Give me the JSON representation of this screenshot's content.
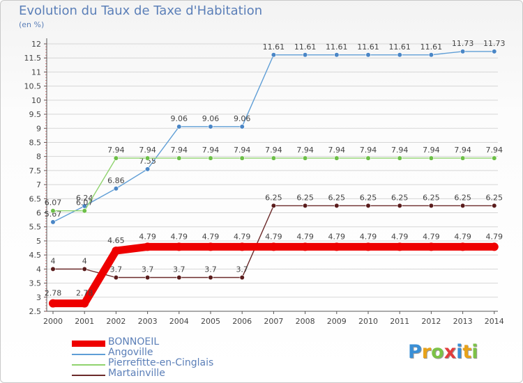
{
  "header": {
    "title": "Evolution du Taux de Taxe d'Habitation",
    "unit": "(en %)"
  },
  "colors": {
    "background": "#ffffff",
    "grid": "#d6d6d6",
    "axis": "#555555",
    "title": "#5b7fb8"
  },
  "logo": {
    "letters": [
      "P",
      "r",
      "o",
      "x",
      "i",
      "t",
      "i"
    ],
    "colors": [
      "#3a8fd6",
      "#e8a219",
      "#7cc247",
      "#e23d3d",
      "#3a8fd6",
      "#e8a219",
      "#7cc247"
    ]
  },
  "chart_data": {
    "type": "line",
    "title": "Evolution du Taux de Taxe d'Habitation",
    "ylabel": "(en %)",
    "x": [
      "2000",
      "2001",
      "2002",
      "2003",
      "2004",
      "2005",
      "2006",
      "2007",
      "2008",
      "2009",
      "2010",
      "2011",
      "2012",
      "2013",
      "2014"
    ],
    "ylim": [
      2.5,
      12
    ],
    "yticks": [
      "2.5",
      "3",
      "3.5",
      "4",
      "4.5",
      "5",
      "5.5",
      "6",
      "6.5",
      "7",
      "7.5",
      "8",
      "8.5",
      "9",
      "9.5",
      "10",
      "10.5",
      "11",
      "11.5",
      "12"
    ],
    "grid": "horizontal",
    "legend_position": "bottom-left",
    "series": [
      {
        "name": "Angoville",
        "color": "#5f9ed6",
        "marker": "#4a86c6",
        "values": [
          5.67,
          6.24,
          6.86,
          7.55,
          9.06,
          9.06,
          9.06,
          11.61,
          11.61,
          11.61,
          11.61,
          11.61,
          11.61,
          11.73,
          11.73
        ],
        "labels": [
          "5.67",
          "6.24",
          "6.86",
          "7.55",
          "9.06",
          "9.06",
          "9.06",
          "11.61",
          "11.61",
          "11.61",
          "11.61",
          "11.61",
          "11.61",
          "11.73",
          "11.73"
        ]
      },
      {
        "name": "Pierrefitte-en-Cinglais",
        "color": "#8fd36e",
        "marker": "#6cbf47",
        "values": [
          6.07,
          6.07,
          7.94,
          7.94,
          7.94,
          7.94,
          7.94,
          7.94,
          7.94,
          7.94,
          7.94,
          7.94,
          7.94,
          7.94,
          7.94
        ],
        "labels": [
          "6.07",
          "6.07",
          "7.94",
          "7.94",
          "7.94",
          "7.94",
          "7.94",
          "7.94",
          "7.94",
          "7.94",
          "7.94",
          "7.94",
          "7.94",
          "7.94",
          "7.94"
        ]
      },
      {
        "name": "Martainville",
        "color": "#6b2a2a",
        "marker": "#5a1c1c",
        "values": [
          4,
          4,
          3.7,
          3.7,
          3.7,
          3.7,
          3.7,
          6.25,
          6.25,
          6.25,
          6.25,
          6.25,
          6.25,
          6.25,
          6.25
        ],
        "labels": [
          "4",
          "4",
          "3.7",
          "3.7",
          "3.7",
          "3.7",
          "3.7",
          "6.25",
          "6.25",
          "6.25",
          "6.25",
          "6.25",
          "6.25",
          "6.25",
          "6.25"
        ]
      },
      {
        "name": "BONNOEIL",
        "color": "#ee0000",
        "marker": "#ee0000",
        "values": [
          2.78,
          2.78,
          4.65,
          4.79,
          4.79,
          4.79,
          4.79,
          4.79,
          4.79,
          4.79,
          4.79,
          4.79,
          4.79,
          4.79,
          4.79
        ],
        "labels": [
          "2.78",
          "2.78",
          "4.65",
          "4.79",
          "4.79",
          "4.79",
          "4.79",
          "4.79",
          "4.79",
          "4.79",
          "4.79",
          "4.79",
          "4.79",
          "4.79",
          "4.79"
        ]
      }
    ]
  },
  "legend": [
    {
      "label": "BONNOEIL",
      "color": "#ee0000",
      "thick": true
    },
    {
      "label": "Angoville",
      "color": "#5f9ed6",
      "thick": false
    },
    {
      "label": "Pierrefitte-en-Cinglais",
      "color": "#8fd36e",
      "thick": false
    },
    {
      "label": "Martainville",
      "color": "#6b2a2a",
      "thick": false
    }
  ]
}
